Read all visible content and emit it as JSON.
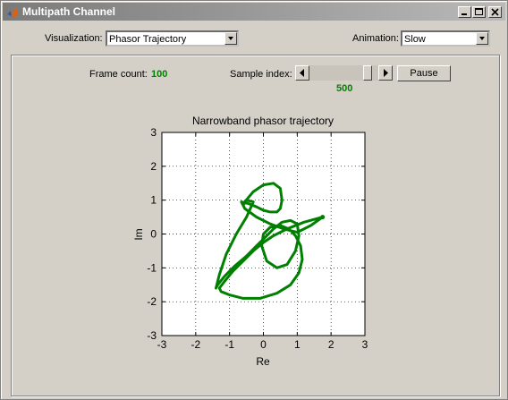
{
  "window": {
    "title": "Multipath Channel"
  },
  "controls": {
    "visualization_label": "Visualization:",
    "visualization_value": "Phasor Trajectory",
    "animation_label": "Animation:",
    "animation_value": "Slow"
  },
  "status": {
    "frame_count_label": "Frame count:",
    "frame_count_value": "100",
    "sample_index_label": "Sample index:",
    "sample_index_value": "500",
    "pause_label": "Pause",
    "slider_level": 0.9
  },
  "icons": {
    "app": "matlab-logo-icon",
    "minimize": "minimize-icon",
    "maximize": "maximize-icon",
    "close": "close-icon",
    "dropdown": "chevron-down-icon",
    "left": "arrow-left-icon",
    "right": "arrow-right-icon"
  },
  "colors": {
    "trajectory": "#008000",
    "value_text": "#008000",
    "title_bar": "#7a7a7a"
  },
  "chart_data": {
    "type": "line",
    "title": "Narrowband phasor trajectory",
    "xlabel": "Re",
    "ylabel": "Im",
    "xlim": [
      -3,
      3
    ],
    "ylim": [
      -3,
      3
    ],
    "xticks": [
      "-3",
      "-2",
      "-1",
      "0",
      "1",
      "2",
      "3"
    ],
    "yticks": [
      "-3",
      "-2",
      "-1",
      "0",
      "1",
      "2",
      "3"
    ],
    "grid": "dotted",
    "series": [
      {
        "x": [
          1.75,
          1.2,
          0.7,
          0.3,
          0.0,
          -0.3,
          -0.6,
          -0.9,
          -1.15,
          -1.3,
          -1.25,
          -1.0,
          -0.6,
          -0.1,
          0.4,
          0.8,
          1.05,
          1.15,
          1.1,
          0.95,
          0.75,
          0.5,
          0.2,
          0.0,
          -0.05,
          0.1,
          0.4,
          0.7,
          0.95,
          1.05,
          1.0,
          0.8,
          0.55,
          0.3,
          0.05,
          -0.2,
          -0.5,
          -0.85,
          -1.15,
          -1.35,
          -1.4,
          -1.3,
          -1.1,
          -0.8,
          -0.5,
          -0.3,
          -0.5,
          -0.6,
          -0.55,
          -0.3,
          0.0,
          0.3,
          0.5,
          0.55,
          0.5,
          0.4,
          0.2,
          0.0,
          -0.2,
          -0.45,
          -0.65,
          -0.55,
          -0.2,
          0.2,
          0.6,
          1.0,
          1.4,
          1.75
        ],
        "y": [
          0.5,
          0.35,
          0.15,
          -0.05,
          -0.25,
          -0.5,
          -0.8,
          -1.1,
          -1.4,
          -1.6,
          -1.7,
          -1.8,
          -1.9,
          -1.9,
          -1.75,
          -1.5,
          -1.15,
          -0.75,
          -0.35,
          -0.05,
          0.15,
          0.25,
          0.2,
          0.0,
          -0.35,
          -0.8,
          -1.0,
          -0.9,
          -0.5,
          -0.05,
          0.3,
          0.4,
          0.35,
          0.15,
          -0.1,
          -0.35,
          -0.65,
          -0.95,
          -1.25,
          -1.5,
          -1.6,
          -1.2,
          -0.6,
          0.0,
          0.5,
          0.95,
          1.0,
          0.85,
          0.95,
          1.25,
          1.45,
          1.5,
          1.35,
          1.0,
          0.75,
          0.65,
          0.65,
          0.7,
          0.8,
          0.9,
          0.95,
          0.75,
          0.5,
          0.3,
          0.15,
          0.05,
          0.25,
          0.5
        ]
      }
    ]
  }
}
